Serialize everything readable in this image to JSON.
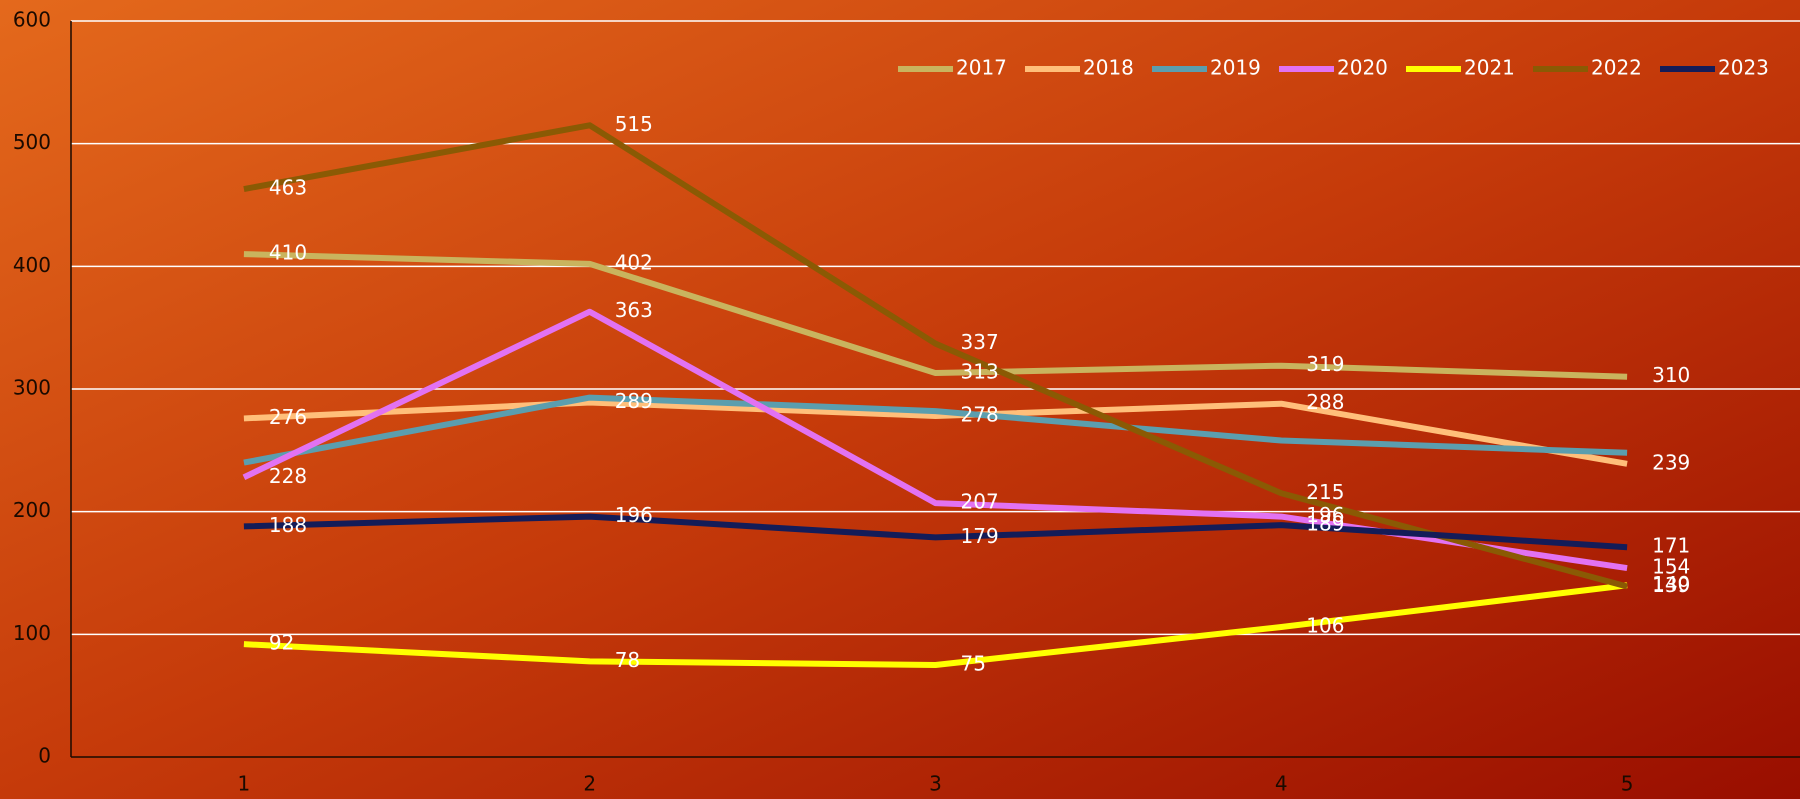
{
  "chart_data": {
    "type": "line",
    "categories": [
      "1",
      "2",
      "3",
      "4",
      "5"
    ],
    "ylim": [
      0,
      600
    ],
    "yticks": [
      0,
      100,
      200,
      300,
      400,
      500,
      600
    ],
    "grid": true,
    "legend": "top-right",
    "series": [
      {
        "name": "2017",
        "color": "#c9b45e",
        "show_labels": true,
        "values": [
          410,
          402,
          313,
          319,
          310
        ]
      },
      {
        "name": "2018",
        "color": "#ffbf7a",
        "show_labels": true,
        "values": [
          276,
          289,
          278,
          288,
          239
        ]
      },
      {
        "name": "2019",
        "color": "#5b9eae",
        "show_labels": false,
        "values": [
          240,
          293,
          282,
          258,
          248
        ]
      },
      {
        "name": "2020",
        "color": "#e272f2",
        "show_labels": true,
        "values": [
          228,
          363,
          207,
          196,
          154
        ]
      },
      {
        "name": "2021",
        "color": "#ffff00",
        "show_labels": true,
        "values": [
          92,
          78,
          75,
          106,
          140
        ]
      },
      {
        "name": "2022",
        "color": "#8a5a04",
        "show_labels": true,
        "values": [
          463,
          515,
          337,
          215,
          139
        ]
      },
      {
        "name": "2023",
        "color": "#141c58",
        "show_labels": true,
        "values": [
          188,
          196,
          179,
          189,
          171
        ]
      }
    ]
  }
}
